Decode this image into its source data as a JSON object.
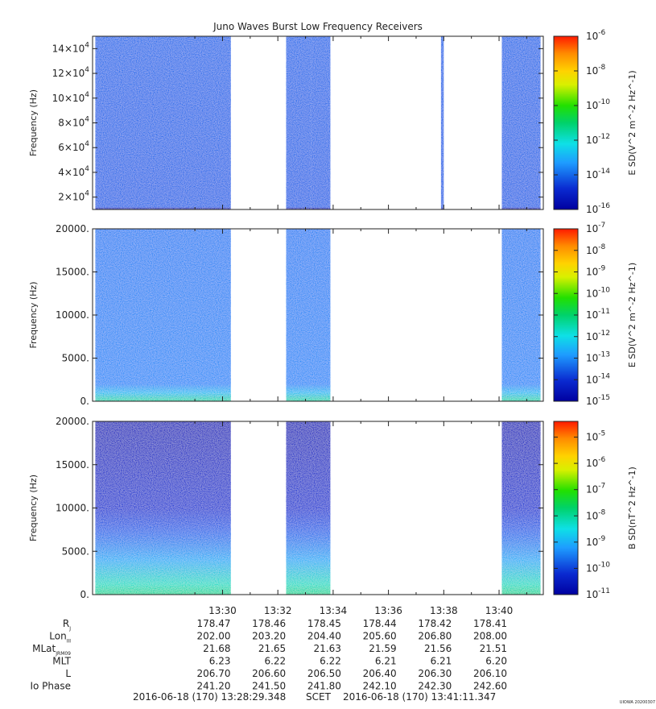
{
  "title": "Juno Waves Burst Low Frequency Receivers",
  "watermark": "UIOWA 20200307",
  "time_axis": {
    "start_min": 805.3,
    "end_min": 821.6,
    "tick_labels": [
      "13:30",
      "13:32",
      "13:34",
      "13:36",
      "13:38",
      "13:40"
    ],
    "tick_values_min": [
      810,
      812,
      814,
      816,
      818,
      820
    ],
    "minor_tick_values_min": [
      809,
      811,
      813,
      815,
      817,
      819,
      821
    ]
  },
  "chart_data": [
    {
      "type": "heatmap",
      "ylabel": "Frequency (Hz)",
      "colorbar_label": "E SD(V^2 m^-2 Hz^-1)",
      "ylim": [
        10000,
        150000
      ],
      "ytick_values": [
        20000,
        40000,
        60000,
        80000,
        100000,
        120000,
        140000
      ],
      "ytick_labels": [
        {
          "mant": "2×10",
          "exp": "4"
        },
        {
          "mant": "4×10",
          "exp": "4"
        },
        {
          "mant": "6×10",
          "exp": "4"
        },
        {
          "mant": "8×10",
          "exp": "4"
        },
        {
          "mant": "10×10",
          "exp": "4"
        },
        {
          "mant": "12×10",
          "exp": "4"
        },
        {
          "mant": "14×10",
          "exp": "4"
        }
      ],
      "clim_log10": [
        -16,
        -6
      ],
      "cbar_ticks": [
        {
          "base": "10",
          "exp": "-6",
          "log": -6
        },
        {
          "base": "10",
          "exp": "-8",
          "log": -8
        },
        {
          "base": "10",
          "exp": "-10",
          "log": -10
        },
        {
          "base": "10",
          "exp": "-12",
          "log": -12
        },
        {
          "base": "10",
          "exp": "-14",
          "log": -14
        },
        {
          "base": "10",
          "exp": "-16",
          "log": -16
        }
      ],
      "data_intervals_min": [
        [
          805.4,
          810.3
        ],
        [
          813.2,
          813.9
        ],
        [
          812.3,
          813.2
        ],
        [
          817.9,
          818.0
        ],
        [
          820.1,
          821.5
        ]
      ],
      "intensity_profile": [
        {
          "freq": 10000,
          "log_sd": -15.8
        },
        {
          "freq": 12000,
          "log_sd": -14.0
        },
        {
          "freq": 150000,
          "log_sd": -13.9
        }
      ]
    },
    {
      "type": "heatmap",
      "ylabel": "Frequency (Hz)",
      "colorbar_label": "E SD(V^2 m^-2 Hz^-1)",
      "ylim": [
        0,
        20000
      ],
      "ytick_values": [
        0,
        5000,
        10000,
        15000,
        20000
      ],
      "ytick_labels": [
        "0.",
        "5000.",
        "10000.",
        "15000.",
        "20000."
      ],
      "clim_log10": [
        -15,
        -7
      ],
      "cbar_ticks": [
        {
          "base": "10",
          "exp": "-7",
          "log": -7
        },
        {
          "base": "10",
          "exp": "-8",
          "log": -8
        },
        {
          "base": "10",
          "exp": "-9",
          "log": -9
        },
        {
          "base": "10",
          "exp": "-10",
          "log": -10
        },
        {
          "base": "10",
          "exp": "-11",
          "log": -11
        },
        {
          "base": "10",
          "exp": "-12",
          "log": -12
        },
        {
          "base": "10",
          "exp": "-13",
          "log": -13
        },
        {
          "base": "10",
          "exp": "-14",
          "log": -14
        },
        {
          "base": "10",
          "exp": "-15",
          "log": -15
        }
      ],
      "data_intervals_min": [
        [
          805.4,
          810.3
        ],
        [
          812.3,
          813.9
        ],
        [
          820.1,
          821.5
        ]
      ],
      "intensity_profile": [
        {
          "freq": 0,
          "log_sd": -11.5
        },
        {
          "freq": 1000,
          "log_sd": -12.4
        },
        {
          "freq": 2000,
          "log_sd": -13.0
        },
        {
          "freq": 20000,
          "log_sd": -13.1
        }
      ]
    },
    {
      "type": "heatmap",
      "ylabel": "Frequency (Hz)",
      "colorbar_label": "B SD(nT^2 Hz^-1)",
      "ylim": [
        0,
        20000
      ],
      "ytick_values": [
        0,
        5000,
        10000,
        15000,
        20000
      ],
      "ytick_labels": [
        "0.",
        "5000.",
        "10000.",
        "15000.",
        "20000."
      ],
      "clim_log10": [
        -11,
        -4.4
      ],
      "cbar_ticks": [
        {
          "base": "10",
          "exp": "-5",
          "log": -5
        },
        {
          "base": "10",
          "exp": "-6",
          "log": -6
        },
        {
          "base": "10",
          "exp": "-7",
          "log": -7
        },
        {
          "base": "10",
          "exp": "-8",
          "log": -8
        },
        {
          "base": "10",
          "exp": "-9",
          "log": -9
        },
        {
          "base": "10",
          "exp": "-10",
          "log": -10
        },
        {
          "base": "10",
          "exp": "-11",
          "log": -11
        }
      ],
      "data_intervals_min": [
        [
          805.4,
          810.3
        ],
        [
          812.3,
          813.9
        ],
        [
          820.1,
          821.5
        ]
      ],
      "intensity_profile": [
        {
          "freq": 0,
          "log_sd": -8.0
        },
        {
          "freq": 1200,
          "log_sd": -8.3
        },
        {
          "freq": 4000,
          "log_sd": -9.0
        },
        {
          "freq": 7000,
          "log_sd": -9.6
        },
        {
          "freq": 10000,
          "log_sd": -10.1
        },
        {
          "freq": 20000,
          "log_sd": -10.5
        }
      ]
    }
  ],
  "ephemeris": {
    "rows": [
      {
        "label": "R",
        "sub": "J",
        "values": [
          "178.47",
          "178.46",
          "178.45",
          "178.44",
          "178.42",
          "178.41"
        ]
      },
      {
        "label": "Lon",
        "sub": "III",
        "values": [
          "202.00",
          "203.20",
          "204.40",
          "205.60",
          "206.80",
          "208.00"
        ]
      },
      {
        "label": "MLat",
        "sub": "JRM09",
        "values": [
          "21.68",
          "21.65",
          "21.63",
          "21.59",
          "21.56",
          "21.51"
        ]
      },
      {
        "label": "MLT",
        "sub": "",
        "values": [
          "6.23",
          "6.22",
          "6.22",
          "6.21",
          "6.21",
          "6.20"
        ]
      },
      {
        "label": "L",
        "sub": "",
        "values": [
          "206.70",
          "206.60",
          "206.50",
          "206.40",
          "206.30",
          "206.10"
        ]
      },
      {
        "label": "Io Phase",
        "sub": "",
        "values": [
          "241.20",
          "241.50",
          "241.80",
          "242.10",
          "242.30",
          "242.60"
        ]
      }
    ]
  },
  "footer": {
    "start": "2016-06-18 (170) 13:28:29.348",
    "scet": "SCET",
    "end": "2016-06-18 (170) 13:41:11.347"
  }
}
